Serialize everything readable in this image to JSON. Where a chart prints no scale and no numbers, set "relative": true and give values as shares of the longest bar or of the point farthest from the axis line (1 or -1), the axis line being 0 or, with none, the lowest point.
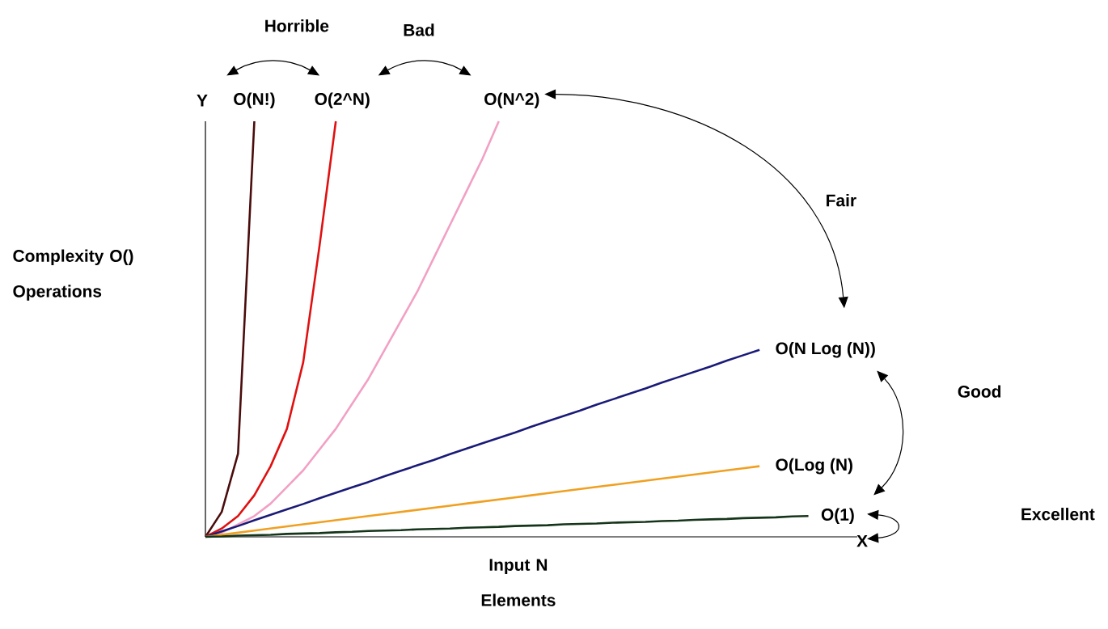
{
  "chart_data": {
    "type": "line",
    "relative": true,
    "xlabel": "Input N Elements",
    "ylabel": "Complexity O() Operations",
    "categories": [
      null,
      null,
      null,
      null,
      null,
      null,
      null,
      null,
      null,
      null,
      null,
      null,
      null,
      null,
      null,
      null,
      null,
      null,
      null,
      null,
      null,
      null,
      null,
      null,
      null,
      null,
      null,
      null,
      null,
      null,
      null,
      null,
      null,
      null,
      null,
      null,
      null,
      null
    ],
    "series": [
      {
        "name": "O(N!)",
        "color": "#4a0c0c",
        "values": [
          0,
          0.06,
          0.2,
          1.0,
          null,
          null,
          null,
          null,
          null,
          null,
          null,
          null,
          null,
          null,
          null,
          null,
          null,
          null,
          null,
          null,
          null,
          null,
          null,
          null,
          null,
          null,
          null,
          null,
          null,
          null,
          null,
          null,
          null,
          null,
          null,
          null,
          null,
          null
        ]
      },
      {
        "name": "O(2^N)",
        "color": "#e01010",
        "values": [
          0,
          0.02,
          0.05,
          0.1,
          0.17,
          0.26,
          0.42,
          0.7,
          1.0,
          null,
          null,
          null,
          null,
          null,
          null,
          null,
          null,
          null,
          null,
          null,
          null,
          null,
          null,
          null,
          null,
          null,
          null,
          null,
          null,
          null,
          null,
          null,
          null,
          null,
          null,
          null,
          null,
          null
        ]
      },
      {
        "name": "O(N^2)",
        "color": "#f2a0c4",
        "values": [
          0,
          0.01,
          0.03,
          0.05,
          0.08,
          0.12,
          0.16,
          0.21,
          0.26,
          0.32,
          0.38,
          0.45,
          0.52,
          0.59,
          0.67,
          0.75,
          0.83,
          0.91,
          1.0,
          null,
          null,
          null,
          null,
          null,
          null,
          null,
          null,
          null,
          null,
          null,
          null,
          null,
          null,
          null,
          null,
          null,
          null,
          null
        ]
      },
      {
        "name": "O(N Log (N))",
        "color": "#1a1a78",
        "values": [
          0,
          0.013,
          0.026,
          0.04,
          0.053,
          0.066,
          0.079,
          0.093,
          0.106,
          0.119,
          0.132,
          0.146,
          0.159,
          0.172,
          0.185,
          0.199,
          0.212,
          0.225,
          0.238,
          0.251,
          0.265,
          0.278,
          0.291,
          0.304,
          0.318,
          0.331,
          0.344,
          0.357,
          0.371,
          0.384,
          0.397,
          0.41,
          0.424,
          0.437,
          0.45,
          null,
          null,
          null
        ]
      },
      {
        "name": "O(Log (N)",
        "color": "#f0a020",
        "values": [
          0,
          0.005,
          0.01,
          0.015,
          0.02,
          0.025,
          0.03,
          0.035,
          0.04,
          0.045,
          0.05,
          0.055,
          0.06,
          0.065,
          0.07,
          0.075,
          0.08,
          0.085,
          0.09,
          0.095,
          0.1,
          0.105,
          0.11,
          0.115,
          0.12,
          0.125,
          0.13,
          0.135,
          0.14,
          0.145,
          0.15,
          0.155,
          0.16,
          0.165,
          0.17,
          null,
          null,
          null
        ]
      },
      {
        "name": "O(1)",
        "color": "#15351a",
        "values": [
          0,
          0.001,
          0.003,
          0.004,
          0.005,
          0.007,
          0.008,
          0.009,
          0.011,
          0.012,
          0.014,
          0.015,
          0.016,
          0.018,
          0.019,
          0.02,
          0.022,
          0.023,
          0.024,
          0.026,
          0.027,
          0.028,
          0.03,
          0.031,
          0.032,
          0.034,
          0.035,
          0.036,
          0.038,
          0.039,
          0.041,
          0.042,
          0.043,
          0.045,
          0.046,
          0.047,
          0.049,
          0.05
        ]
      }
    ],
    "annotations": [
      "Horrible",
      "Bad",
      "Fair",
      "Good",
      "Excellent",
      "Y",
      "X"
    ]
  }
}
